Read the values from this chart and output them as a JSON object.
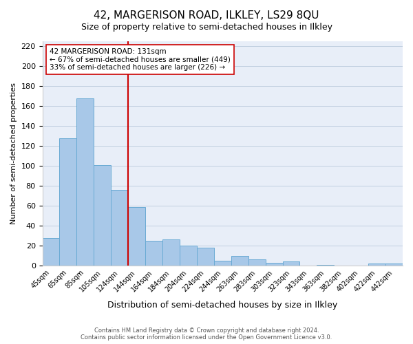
{
  "title": "42, MARGERISON ROAD, ILKLEY, LS29 8QU",
  "subtitle": "Size of property relative to semi-detached houses in Ilkley",
  "xlabel": "Distribution of semi-detached houses by size in Ilkley",
  "ylabel": "Number of semi-detached properties",
  "bar_labels": [
    "45sqm",
    "65sqm",
    "85sqm",
    "105sqm",
    "124sqm",
    "144sqm",
    "164sqm",
    "184sqm",
    "204sqm",
    "224sqm",
    "244sqm",
    "263sqm",
    "283sqm",
    "303sqm",
    "323sqm",
    "343sqm",
    "363sqm",
    "382sqm",
    "402sqm",
    "422sqm",
    "442sqm"
  ],
  "bar_values": [
    28,
    128,
    168,
    101,
    76,
    59,
    25,
    26,
    20,
    18,
    5,
    10,
    6,
    3,
    4,
    0,
    1,
    0,
    0,
    2,
    2
  ],
  "bar_color": "#a8c8e8",
  "bar_edge_color": "#6aaad4",
  "property_line_x": 4.5,
  "property_value": 131,
  "annotation_title": "42 MARGERISON ROAD: 131sqm",
  "annotation_line1": "← 67% of semi-detached houses are smaller (449)",
  "annotation_line2": "33% of semi-detached houses are larger (226) →",
  "vline_color": "#cc0000",
  "annotation_box_color": "#ffffff",
  "annotation_box_edge": "#cc0000",
  "ylim": [
    0,
    225
  ],
  "yticks": [
    0,
    20,
    40,
    60,
    80,
    100,
    120,
    140,
    160,
    180,
    200,
    220
  ],
  "footer_line1": "Contains HM Land Registry data © Crown copyright and database right 2024.",
  "footer_line2": "Contains public sector information licensed under the Open Government Licence v3.0.",
  "background_color": "#e8eef8"
}
